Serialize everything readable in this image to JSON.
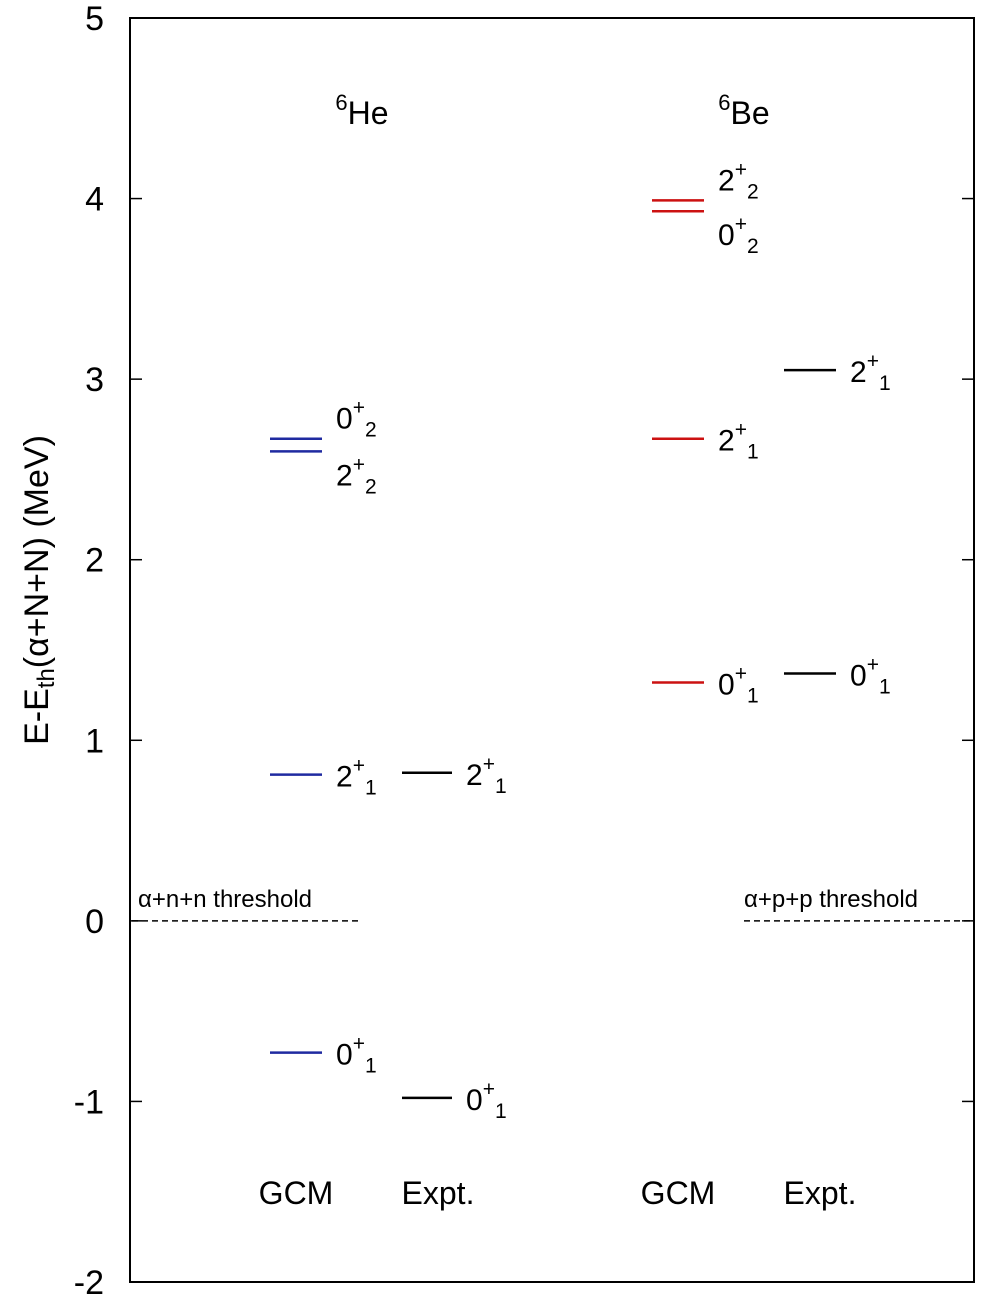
{
  "chart_data": {
    "type": "level-scheme",
    "ylabel": "E-Eth(α+N+N) (MeV)",
    "ylabel_parts": {
      "main": "E-E",
      "sub": "th",
      "rest": "(α+N+N) (MeV)"
    },
    "ylim": [
      -2,
      5
    ],
    "yticks": [
      -2,
      -1,
      0,
      1,
      2,
      3,
      4,
      5
    ],
    "nuclei": [
      {
        "label_sup": "6",
        "label": "He"
      },
      {
        "label_sup": "6",
        "label": "Be"
      }
    ],
    "columns": [
      "GCM",
      "Expt.",
      "GCM",
      "Expt."
    ],
    "thresholds": [
      {
        "text": "α+n+n threshold",
        "energy": 0
      },
      {
        "text": "α+p+p threshold",
        "energy": 0
      }
    ],
    "levels": [
      {
        "nucleus": "6He",
        "column": "GCM",
        "energy": 2.67,
        "j": "0",
        "parity": "+",
        "n": "2",
        "color": "#1f2aa0"
      },
      {
        "nucleus": "6He",
        "column": "GCM",
        "energy": 2.6,
        "j": "2",
        "parity": "+",
        "n": "2",
        "color": "#1f2aa0"
      },
      {
        "nucleus": "6He",
        "column": "GCM",
        "energy": 0.81,
        "j": "2",
        "parity": "+",
        "n": "1",
        "color": "#1f2aa0"
      },
      {
        "nucleus": "6He",
        "column": "GCM",
        "energy": -0.73,
        "j": "0",
        "parity": "+",
        "n": "1",
        "color": "#1f2aa0"
      },
      {
        "nucleus": "6He",
        "column": "Expt.",
        "energy": 0.82,
        "j": "2",
        "parity": "+",
        "n": "1",
        "color": "#000000"
      },
      {
        "nucleus": "6He",
        "column": "Expt.",
        "energy": -0.98,
        "j": "0",
        "parity": "+",
        "n": "1",
        "color": "#000000"
      },
      {
        "nucleus": "6Be",
        "column": "GCM",
        "energy": 3.99,
        "j": "2",
        "parity": "+",
        "n": "2",
        "color": "#cc1111"
      },
      {
        "nucleus": "6Be",
        "column": "GCM",
        "energy": 3.93,
        "j": "0",
        "parity": "+",
        "n": "2",
        "color": "#cc1111"
      },
      {
        "nucleus": "6Be",
        "column": "GCM",
        "energy": 2.67,
        "j": "2",
        "parity": "+",
        "n": "1",
        "color": "#cc1111"
      },
      {
        "nucleus": "6Be",
        "column": "GCM",
        "energy": 1.32,
        "j": "0",
        "parity": "+",
        "n": "1",
        "color": "#cc1111"
      },
      {
        "nucleus": "6Be",
        "column": "Expt.",
        "energy": 3.05,
        "j": "2",
        "parity": "+",
        "n": "1",
        "color": "#000000"
      },
      {
        "nucleus": "6Be",
        "column": "Expt.",
        "energy": 1.37,
        "j": "0",
        "parity": "+",
        "n": "1",
        "color": "#000000"
      }
    ]
  }
}
